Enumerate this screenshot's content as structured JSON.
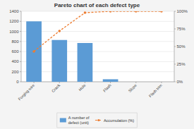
{
  "chart_data": {
    "type": "bar",
    "title": "Pareto chart of each defect type",
    "categories": [
      "Forging wire",
      "Crack",
      "Hole",
      "Flash",
      "Slope",
      "Flash trim"
    ],
    "series": [
      {
        "name": "A number of\ndefect (unit)",
        "type": "bar",
        "color": "#5b9bd5",
        "values": [
          1200,
          830,
          770,
          50,
          0,
          0
        ]
      },
      {
        "name": "Accumulation (%)",
        "type": "line",
        "axis": "y2",
        "color": "#ed7d31",
        "marker": "circle",
        "line_style": "dashed",
        "values": [
          43,
          72,
          98,
          100,
          100,
          100
        ]
      }
    ],
    "ylim": [
      0,
      1400
    ],
    "yticks": [
      0,
      200,
      400,
      600,
      800,
      1000,
      1200,
      1400
    ],
    "y2lim": [
      0,
      100
    ],
    "y2ticks": [
      {
        "value": 0,
        "label": "0%"
      },
      {
        "value": 25,
        "label": "25%"
      },
      {
        "value": 50,
        "label": "50%"
      },
      {
        "value": 75,
        "label": "75%"
      },
      {
        "value": 100,
        "label": "100%"
      }
    ],
    "grid": true,
    "legend": "bottom"
  }
}
